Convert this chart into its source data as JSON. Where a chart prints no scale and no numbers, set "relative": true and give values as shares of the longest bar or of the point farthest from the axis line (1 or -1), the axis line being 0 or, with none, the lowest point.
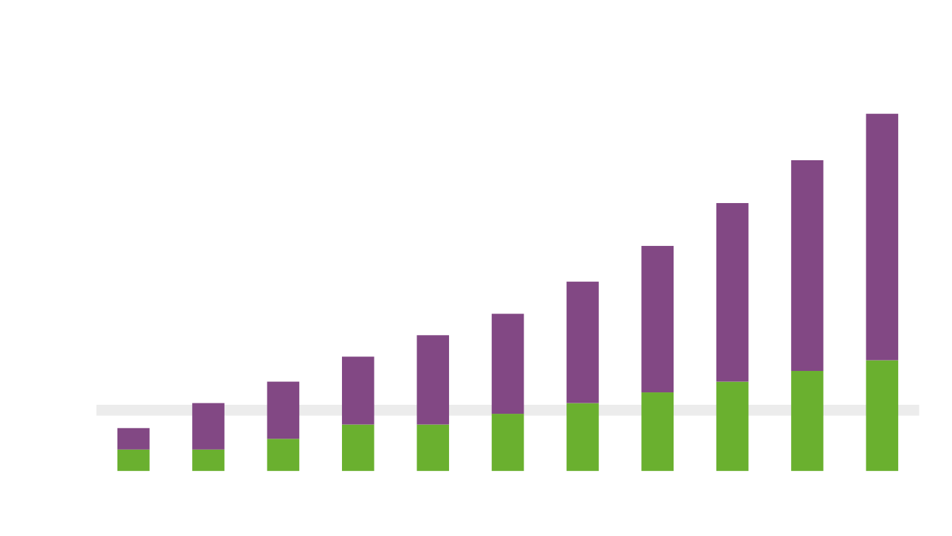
{
  "chart_data": {
    "type": "bar",
    "stacked": true,
    "relative": true,
    "categories": [
      null,
      null,
      null,
      null,
      null,
      null,
      null,
      null,
      null,
      null,
      null
    ],
    "series": [
      {
        "color": "#6ab02f",
        "values": [
          0.06,
          0.06,
          0.09,
          0.13,
          0.13,
          0.16,
          0.19,
          0.22,
          0.25,
          0.28,
          0.31
        ]
      },
      {
        "color": "#824884",
        "values": [
          0.06,
          0.13,
          0.16,
          0.19,
          0.25,
          0.28,
          0.34,
          0.41,
          0.5,
          0.59,
          0.69
        ]
      }
    ],
    "ref_lines": [
      {
        "axis": "y",
        "value": 0.17,
        "color": "#ececec"
      }
    ]
  }
}
